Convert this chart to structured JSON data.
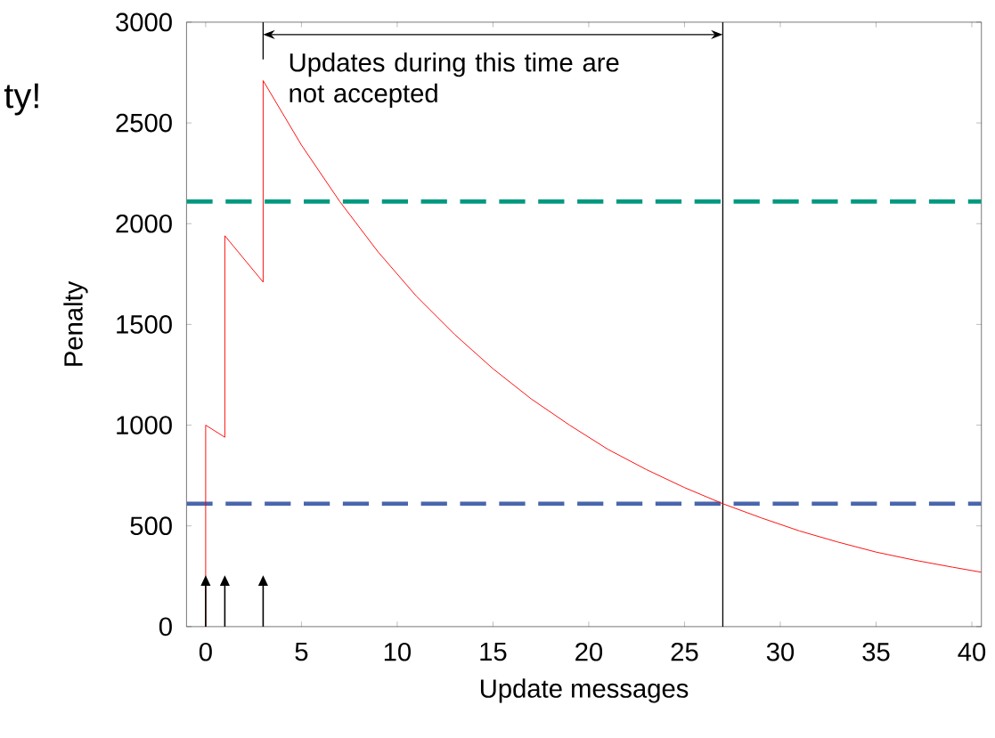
{
  "chart_data": {
    "type": "line",
    "xlabel": "Update messages",
    "ylabel": "Penalty",
    "xlim": [
      -1,
      40.5
    ],
    "ylim": [
      0,
      3000
    ],
    "xticks": [
      0,
      5,
      10,
      15,
      20,
      25,
      30,
      35,
      40
    ],
    "yticks": [
      0,
      500,
      1000,
      1500,
      2000,
      2500,
      3000
    ],
    "series": [
      {
        "color": "#ff0000",
        "x": [
          0,
          0,
          1,
          1,
          3,
          3,
          5,
          7,
          9,
          11,
          13,
          15,
          17,
          19,
          21,
          23,
          25,
          27,
          29,
          31,
          33,
          35,
          37,
          39,
          40.5
        ],
        "values": [
          0,
          1000,
          940,
          1940,
          1710,
          2710,
          2390,
          2110,
          1860,
          1640,
          1450,
          1280,
          1130,
          1000,
          880,
          780,
          690,
          610,
          540,
          475,
          420,
          370,
          330,
          295,
          270
        ]
      }
    ],
    "ref_lines": [
      {
        "axis": "y",
        "value": 2110,
        "color": "#009980",
        "line_style": "dashed"
      },
      {
        "axis": "y",
        "value": 610,
        "color": "#4a66ac",
        "line_style": "dashed"
      },
      {
        "axis": "x",
        "value": 27,
        "color": "#000000",
        "line_style": "solid"
      }
    ],
    "annotations": [
      "Updates during this time are not accepted",
      "ty!"
    ]
  }
}
